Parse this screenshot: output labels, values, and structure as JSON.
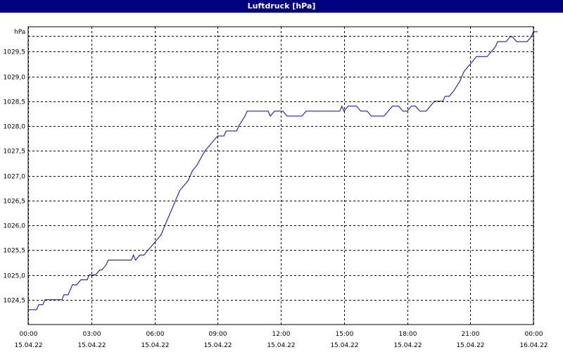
{
  "window": {
    "title": "Luftdruck [hPa]"
  },
  "chart_data": {
    "type": "line",
    "title": "Luftdruck [hPa]",
    "ylabel": "hPa",
    "xlabel": "",
    "ylim": [
      1024.0,
      1030.0
    ],
    "xlim": [
      0,
      24
    ],
    "grid": true,
    "x_ticks": [
      {
        "x": 0,
        "time": "00:00",
        "date": "15.04.22"
      },
      {
        "x": 3,
        "time": "03:00",
        "date": "15.04.22"
      },
      {
        "x": 6,
        "time": "06:00",
        "date": "15.04.22"
      },
      {
        "x": 9,
        "time": "09:00",
        "date": "15.04.22"
      },
      {
        "x": 12,
        "time": "12:00",
        "date": "15.04.22"
      },
      {
        "x": 15,
        "time": "15:00",
        "date": "15.04.22"
      },
      {
        "x": 18,
        "time": "18:00",
        "date": "15.04.22"
      },
      {
        "x": 21,
        "time": "21:00",
        "date": "15.04.22"
      },
      {
        "x": 24,
        "time": "00:00",
        "date": "16.04.22"
      }
    ],
    "y_ticks": [
      {
        "v": 1024.5,
        "label": "1024,5"
      },
      {
        "v": 1025.0,
        "label": "1025,0"
      },
      {
        "v": 1025.5,
        "label": "1025,5"
      },
      {
        "v": 1026.0,
        "label": "1026,0"
      },
      {
        "v": 1026.5,
        "label": "1026,5"
      },
      {
        "v": 1027.0,
        "label": "1027,0"
      },
      {
        "v": 1027.5,
        "label": "1027,5"
      },
      {
        "v": 1028.0,
        "label": "1028,0"
      },
      {
        "v": 1028.5,
        "label": "1028,5"
      },
      {
        "v": 1029.0,
        "label": "1029,0"
      },
      {
        "v": 1029.5,
        "label": "1029,5"
      }
    ],
    "series": [
      {
        "color": "#0000cc",
        "points": [
          [
            0.0,
            1024.3
          ],
          [
            0.4,
            1024.3
          ],
          [
            0.5,
            1024.4
          ],
          [
            0.7,
            1024.4
          ],
          [
            0.8,
            1024.5
          ],
          [
            1.6,
            1024.5
          ],
          [
            1.7,
            1024.6
          ],
          [
            1.9,
            1024.6
          ],
          [
            2.1,
            1024.8
          ],
          [
            2.3,
            1024.8
          ],
          [
            2.5,
            1024.9
          ],
          [
            2.8,
            1024.9
          ],
          [
            2.9,
            1025.0
          ],
          [
            3.2,
            1025.0
          ],
          [
            3.4,
            1025.1
          ],
          [
            3.5,
            1025.1
          ],
          [
            3.7,
            1025.2
          ],
          [
            3.8,
            1025.3
          ],
          [
            4.9,
            1025.3
          ],
          [
            5.0,
            1025.4
          ],
          [
            5.1,
            1025.3
          ],
          [
            5.3,
            1025.4
          ],
          [
            5.5,
            1025.4
          ],
          [
            5.7,
            1025.5
          ],
          [
            5.9,
            1025.6
          ],
          [
            6.1,
            1025.7
          ],
          [
            6.3,
            1025.8
          ],
          [
            6.5,
            1026.0
          ],
          [
            6.7,
            1026.2
          ],
          [
            6.8,
            1026.3
          ],
          [
            6.9,
            1026.4
          ],
          [
            7.0,
            1026.5
          ],
          [
            7.2,
            1026.7
          ],
          [
            7.4,
            1026.8
          ],
          [
            7.6,
            1026.9
          ],
          [
            7.8,
            1027.1
          ],
          [
            8.0,
            1027.2
          ],
          [
            8.2,
            1027.35
          ],
          [
            8.4,
            1027.5
          ],
          [
            8.6,
            1027.6
          ],
          [
            8.8,
            1027.7
          ],
          [
            9.0,
            1027.8
          ],
          [
            9.3,
            1027.8
          ],
          [
            9.4,
            1027.9
          ],
          [
            9.9,
            1027.9
          ],
          [
            10.0,
            1028.0
          ],
          [
            10.3,
            1028.2
          ],
          [
            10.4,
            1028.3
          ],
          [
            11.4,
            1028.3
          ],
          [
            11.5,
            1028.2
          ],
          [
            11.7,
            1028.3
          ],
          [
            12.1,
            1028.3
          ],
          [
            12.3,
            1028.2
          ],
          [
            13.0,
            1028.2
          ],
          [
            13.2,
            1028.3
          ],
          [
            14.8,
            1028.3
          ],
          [
            14.9,
            1028.4
          ],
          [
            15.0,
            1028.3
          ],
          [
            15.2,
            1028.4
          ],
          [
            15.6,
            1028.4
          ],
          [
            15.8,
            1028.3
          ],
          [
            16.1,
            1028.3
          ],
          [
            16.3,
            1028.2
          ],
          [
            16.9,
            1028.2
          ],
          [
            17.1,
            1028.3
          ],
          [
            17.3,
            1028.4
          ],
          [
            17.6,
            1028.4
          ],
          [
            17.8,
            1028.3
          ],
          [
            18.0,
            1028.3
          ],
          [
            18.2,
            1028.4
          ],
          [
            18.4,
            1028.4
          ],
          [
            18.6,
            1028.3
          ],
          [
            18.9,
            1028.3
          ],
          [
            19.1,
            1028.4
          ],
          [
            19.3,
            1028.5
          ],
          [
            19.7,
            1028.5
          ],
          [
            19.8,
            1028.6
          ],
          [
            20.0,
            1028.6
          ],
          [
            20.2,
            1028.7
          ],
          [
            20.5,
            1028.9
          ],
          [
            20.7,
            1029.1
          ],
          [
            20.9,
            1029.2
          ],
          [
            21.1,
            1029.3
          ],
          [
            21.3,
            1029.4
          ],
          [
            21.8,
            1029.4
          ],
          [
            22.0,
            1029.5
          ],
          [
            22.2,
            1029.6
          ],
          [
            22.3,
            1029.7
          ],
          [
            22.7,
            1029.7
          ],
          [
            22.9,
            1029.8
          ],
          [
            23.0,
            1029.8
          ],
          [
            23.2,
            1029.7
          ],
          [
            23.7,
            1029.7
          ],
          [
            23.9,
            1029.8
          ],
          [
            24.0,
            1029.9
          ],
          [
            24.2,
            1029.9
          ]
        ]
      }
    ]
  }
}
